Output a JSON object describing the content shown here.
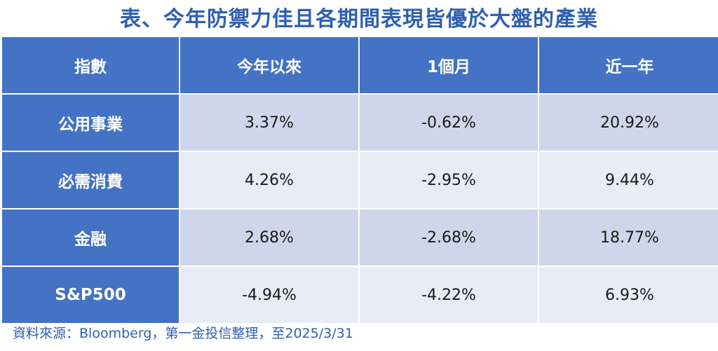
{
  "title": "表、今年防禦力佳且各期間表現皆優於大盤的產業",
  "source": "資料來源：Bloomberg，第一金投信整理，至2025/3/31",
  "chart_data": {
    "type": "table",
    "columns": [
      "指數",
      "今年以來",
      "1個月",
      "近一年"
    ],
    "rows": [
      {
        "name": "公用事業",
        "cells": [
          "3.37%",
          "-0.62%",
          "20.92%"
        ]
      },
      {
        "name": "必需消費",
        "cells": [
          "4.26%",
          "-2.95%",
          "9.44%"
        ]
      },
      {
        "name": "金融",
        "cells": [
          "2.68%",
          "-2.68%",
          "18.77%"
        ]
      },
      {
        "name": "S&P500",
        "cells": [
          "-4.94%",
          "-4.22%",
          "6.93%"
        ]
      }
    ]
  },
  "colors": {
    "header_bg": "#4472c4",
    "row_odd_bg": "#cfd5ea",
    "row_even_bg": "#e9ebf5",
    "title_color": "#2e5fb0"
  }
}
